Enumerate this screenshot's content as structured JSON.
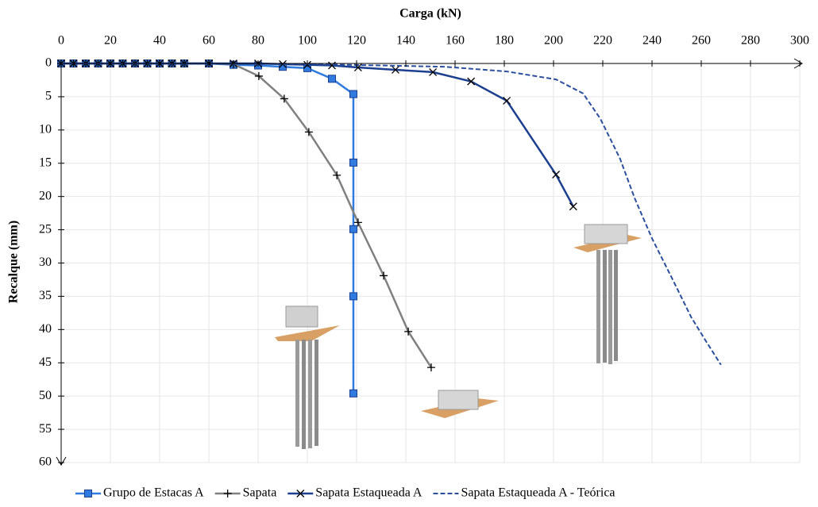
{
  "chart_data": {
    "type": "line",
    "x_label": "Carga (kN)",
    "y_label": "Recalque (mm)",
    "xlim": [
      0,
      300
    ],
    "xticks": [
      0,
      20,
      40,
      60,
      80,
      100,
      120,
      140,
      160,
      180,
      200,
      220,
      240,
      260,
      280,
      300
    ],
    "ylim": [
      0,
      60
    ],
    "yticks": [
      0,
      5,
      10,
      15,
      20,
      25,
      30,
      35,
      40,
      45,
      50,
      55,
      60
    ],
    "y_inverted": true,
    "x_axis_position": "top",
    "grid": true,
    "legend": "bottom",
    "series": [
      {
        "name": "Grupo de Estacas A",
        "color": "#2f7be0",
        "marker": "square",
        "line_style": "solid",
        "x": [
          0,
          5,
          10,
          15,
          20,
          25,
          30,
          35,
          40,
          45,
          50,
          60,
          70,
          80,
          90,
          100,
          110,
          118.7,
          118.7,
          118.7,
          118.7,
          118.7
        ],
        "values": [
          0,
          0,
          0,
          0,
          0,
          0,
          0,
          0,
          0,
          0,
          0,
          0,
          0.2,
          0.3,
          0.5,
          0.7,
          2.3,
          4.6,
          14.9,
          24.9,
          35,
          49.6
        ]
      },
      {
        "name": "Sapata",
        "color": "#808080",
        "marker": "plus",
        "line_style": "solid",
        "x": [
          0,
          5,
          10,
          15,
          20,
          25,
          30,
          35,
          40,
          45,
          50,
          60,
          70,
          80.3,
          90.6,
          100.6,
          112,
          120.6,
          131,
          141,
          150.3
        ],
        "values": [
          0,
          0,
          0,
          0,
          0,
          0,
          0,
          0,
          0,
          0,
          0,
          0,
          0.1,
          1.9,
          5.3,
          10.3,
          16.8,
          23.9,
          31.9,
          40.3,
          45.7
        ]
      },
      {
        "name": "Sapata Estaqueada A",
        "color": "#1c3f8f",
        "marker": "x",
        "line_style": "solid",
        "x": [
          0,
          5,
          10,
          15,
          20,
          25,
          30,
          35,
          40,
          45,
          50,
          60,
          70,
          80,
          90,
          100,
          110,
          120.6,
          135.8,
          151,
          166.5,
          181,
          201,
          208
        ],
        "values": [
          0,
          0,
          0,
          0,
          0,
          0,
          0,
          0,
          0,
          0,
          0,
          0,
          0,
          0,
          0.1,
          0.2,
          0.3,
          0.6,
          0.95,
          1.3,
          2.7,
          5.6,
          16.7,
          21.5
        ]
      },
      {
        "name": "Sapata Estaqueada A - Teórica",
        "color": "#2b4f9e",
        "marker": "none",
        "line_style": "dashed",
        "x": [
          0,
          100,
          130,
          156,
          181,
          201,
          212,
          219,
          227,
          233,
          240,
          248,
          256,
          262,
          268
        ],
        "values": [
          0,
          0.1,
          0.3,
          0.5,
          1.2,
          2.4,
          4.5,
          8.3,
          14.3,
          20.3,
          26.3,
          32.2,
          38.2,
          41.8,
          45.3
        ]
      }
    ]
  }
}
